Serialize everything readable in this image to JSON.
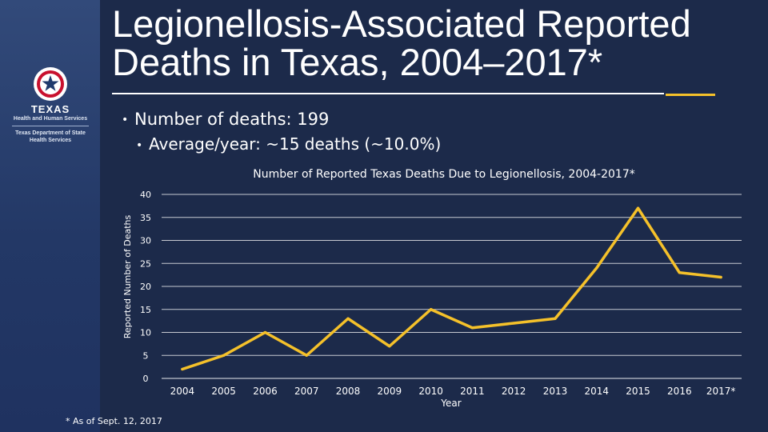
{
  "slide": {
    "title": "Legionellosis-Associated Reported Deaths in Texas, 2004–2017*",
    "bullets": {
      "main": "Number of deaths: 199",
      "sub": "Average/year: ~15 deaths (~10.0%)"
    },
    "footnote": "* As of Sept. 12, 2017"
  },
  "logo": {
    "name": "TEXAS",
    "line1": "Health and Human Services",
    "line2": "Texas Department of State",
    "line3": "Health Services"
  },
  "colors": {
    "background": "#1c2a4a",
    "line": "#f5c12a",
    "grid": "#ffffff",
    "accent": "#f5c12a"
  },
  "chart_data": {
    "type": "line",
    "title": "Number of Reported Texas Deaths Due to Legionellosis, 2004-2017*",
    "xlabel": "Year",
    "ylabel": "Reported Number of Deaths",
    "categories": [
      "2004",
      "2005",
      "2006",
      "2007",
      "2008",
      "2009",
      "2010",
      "2011",
      "2012",
      "2013",
      "2014",
      "2015",
      "2016",
      "2017*"
    ],
    "series": [
      {
        "values": [
          2,
          5,
          10,
          5,
          13,
          7,
          15,
          11,
          12,
          13,
          24,
          37,
          23,
          22
        ]
      }
    ],
    "ylim": [
      0,
      40
    ],
    "yticks": [
      0,
      5,
      10,
      15,
      20,
      25,
      30,
      35,
      40
    ],
    "grid": true,
    "legend": "none"
  }
}
